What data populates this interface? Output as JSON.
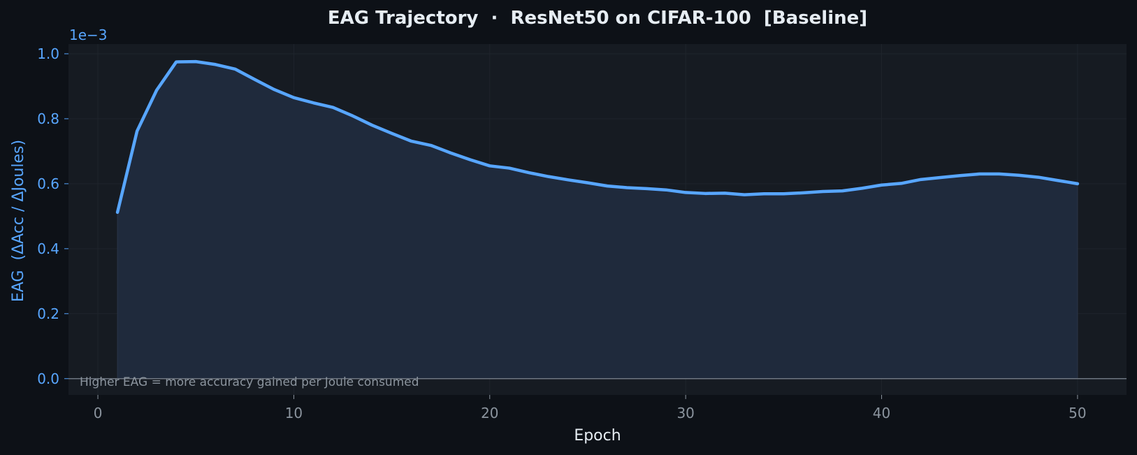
{
  "colors": {
    "background": "#0d1117",
    "plot_background": "#161b22",
    "line": "#58a6ff",
    "fill": "#1f2a3c",
    "grid": "#1f242c",
    "zero_line": "#6e7681"
  },
  "chart_data": {
    "type": "area",
    "title": "EAG Trajectory  ·  ResNet50 on CIFAR-100  [Baseline]",
    "xlabel": "Epoch",
    "ylabel": "EAG  (ΔAcc / ΔJoules)",
    "y_offset_text": "1e−3",
    "annotation": "Higher EAG = more accuracy gained per Joule consumed",
    "xlim": [
      -1.5,
      52.5
    ],
    "ylim": [
      -0.05,
      1.03
    ],
    "x_ticks": [
      0,
      10,
      20,
      30,
      40,
      50
    ],
    "y_ticks": [
      0.0,
      0.2,
      0.4,
      0.6,
      0.8,
      1.0
    ],
    "x_tick_labels": [
      "0",
      "10",
      "20",
      "30",
      "40",
      "50"
    ],
    "y_tick_labels": [
      "0.0",
      "0.2",
      "0.4",
      "0.6",
      "0.8",
      "1.0"
    ],
    "grid": true,
    "series": [
      {
        "x": [
          1,
          2,
          3,
          4,
          5,
          6,
          7,
          8,
          9,
          10,
          11,
          12,
          13,
          14,
          15,
          16,
          17,
          18,
          19,
          20,
          21,
          22,
          23,
          24,
          25,
          26,
          27,
          28,
          29,
          30,
          31,
          32,
          33,
          34,
          35,
          36,
          37,
          38,
          39,
          40,
          41,
          42,
          43,
          44,
          45,
          46,
          47,
          48,
          49,
          50
        ],
        "values": [
          0.512,
          0.762,
          0.888,
          0.975,
          0.976,
          0.967,
          0.953,
          0.921,
          0.89,
          0.865,
          0.849,
          0.835,
          0.809,
          0.78,
          0.755,
          0.731,
          0.718,
          0.695,
          0.674,
          0.655,
          0.648,
          0.634,
          0.622,
          0.612,
          0.603,
          0.593,
          0.588,
          0.585,
          0.581,
          0.573,
          0.57,
          0.571,
          0.566,
          0.569,
          0.569,
          0.572,
          0.576,
          0.578,
          0.586,
          0.596,
          0.601,
          0.613,
          0.619,
          0.625,
          0.63,
          0.63,
          0.626,
          0.62,
          0.61,
          0.6
        ]
      }
    ]
  }
}
